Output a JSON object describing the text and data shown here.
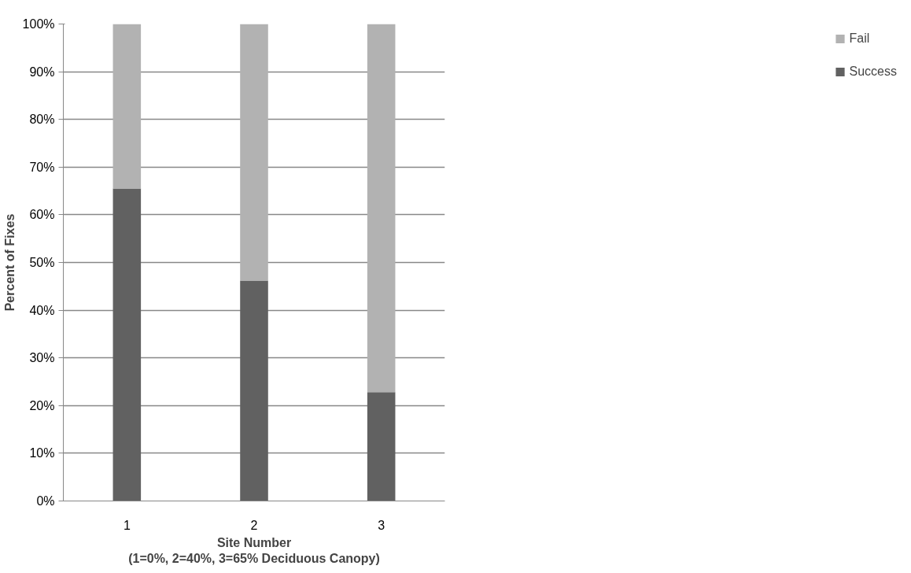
{
  "chart_data": {
    "type": "bar",
    "stacked": true,
    "xlabel": "Site Number\n(1=0%, 2=40%, 3=65% Deciduous Canopy)",
    "ylabel": "Percent of Fixes",
    "categories": [
      "1",
      "2",
      "3"
    ],
    "series": [
      {
        "name": "Success",
        "color": "#616161",
        "values": [
          65.5,
          46.2,
          22.8
        ]
      },
      {
        "name": "Fail",
        "color": "#b2b2b2",
        "values": [
          34.5,
          53.8,
          77.2
        ]
      }
    ],
    "ylim": [
      0,
      100
    ],
    "yticks": [
      {
        "value": 0,
        "label": "0%"
      },
      {
        "value": 10,
        "label": "10%"
      },
      {
        "value": 20,
        "label": "20%"
      },
      {
        "value": 30,
        "label": "30%"
      },
      {
        "value": 40,
        "label": "40%"
      },
      {
        "value": 50,
        "label": "50%"
      },
      {
        "value": 60,
        "label": "60%"
      },
      {
        "value": 70,
        "label": "70%"
      },
      {
        "value": 80,
        "label": "80%"
      },
      {
        "value": 90,
        "label": "90%"
      },
      {
        "value": 100,
        "label": "100%"
      }
    ],
    "grid": "y",
    "legend": "right"
  }
}
